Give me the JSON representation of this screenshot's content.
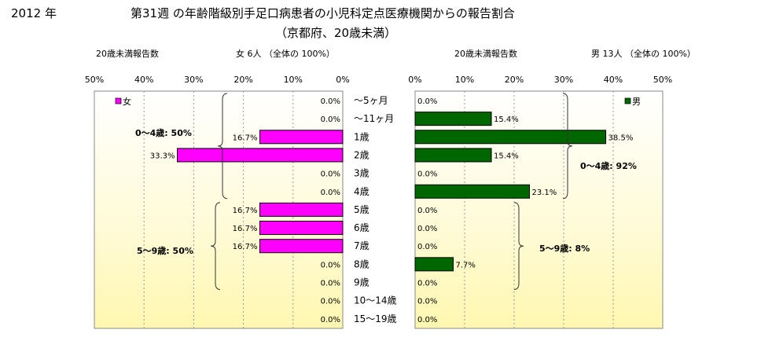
{
  "header": {
    "year": "2012 年",
    "title": "第31週 の年齢階級別手足口病患者の小児科定点医療機関からの報告割合",
    "subtitle": "（京都府、20歳未満）"
  },
  "left_panel": {
    "caption": "20歳未満報告数",
    "total": "女 6人 （全体の 100%）"
  },
  "right_panel": {
    "caption": "20歳未満報告数",
    "total": "男 13人 （全体の 100%）"
  },
  "chart_data": [
    {
      "type": "bar",
      "orientation": "horizontal",
      "direction": "right-to-left",
      "categories": [
        "～5ヶ月",
        "～11ヶ月",
        "1歳",
        "2歳",
        "3歳",
        "4歳",
        "5歳",
        "6歳",
        "7歳",
        "8歳",
        "9歳",
        "10～14歳",
        "15～19歳"
      ],
      "series": [
        {
          "name": "女",
          "color": "#ff00ff",
          "values": [
            0.0,
            0.0,
            16.7,
            33.3,
            0.0,
            0.0,
            16.7,
            16.7,
            16.7,
            0.0,
            0.0,
            0.0,
            0.0
          ],
          "labels": [
            "0.0%",
            "0.0%",
            "16.7%",
            "33.3%",
            "0.0%",
            "0.0%",
            "16.7%",
            "16.7%",
            "16.7%",
            "0.0%",
            "0.0%",
            "0.0%",
            "0.0%"
          ]
        }
      ],
      "xlim": [
        0,
        50
      ],
      "xticks": [
        "50%",
        "40%",
        "30%",
        "20%",
        "10%",
        "0%"
      ],
      "grid": true,
      "legend": "top-left",
      "annotations": [
        "0～4歳: 50%",
        "5～9歳: 50%"
      ]
    },
    {
      "type": "bar",
      "orientation": "horizontal",
      "direction": "left-to-right",
      "categories": [
        "～5ヶ月",
        "～11ヶ月",
        "1歳",
        "2歳",
        "3歳",
        "4歳",
        "5歳",
        "6歳",
        "7歳",
        "8歳",
        "9歳",
        "10～14歳",
        "15～19歳"
      ],
      "series": [
        {
          "name": "男",
          "color": "#006600",
          "values": [
            0.0,
            15.4,
            38.5,
            15.4,
            0.0,
            23.1,
            0.0,
            0.0,
            0.0,
            7.7,
            0.0,
            0.0,
            0.0
          ],
          "labels": [
            "0.0%",
            "15.4%",
            "38.5%",
            "15.4%",
            "0.0%",
            "23.1%",
            "0.0%",
            "0.0%",
            "0.0%",
            "7.7%",
            "0.0%",
            "0.0%",
            "0.0%"
          ]
        }
      ],
      "xlim": [
        0,
        50
      ],
      "xticks": [
        "0%",
        "10%",
        "20%",
        "30%",
        "40%",
        "50%"
      ],
      "grid": true,
      "legend": "top-right",
      "annotations": [
        "0～4歳: 92%",
        "5～9歳: 8%"
      ]
    }
  ]
}
